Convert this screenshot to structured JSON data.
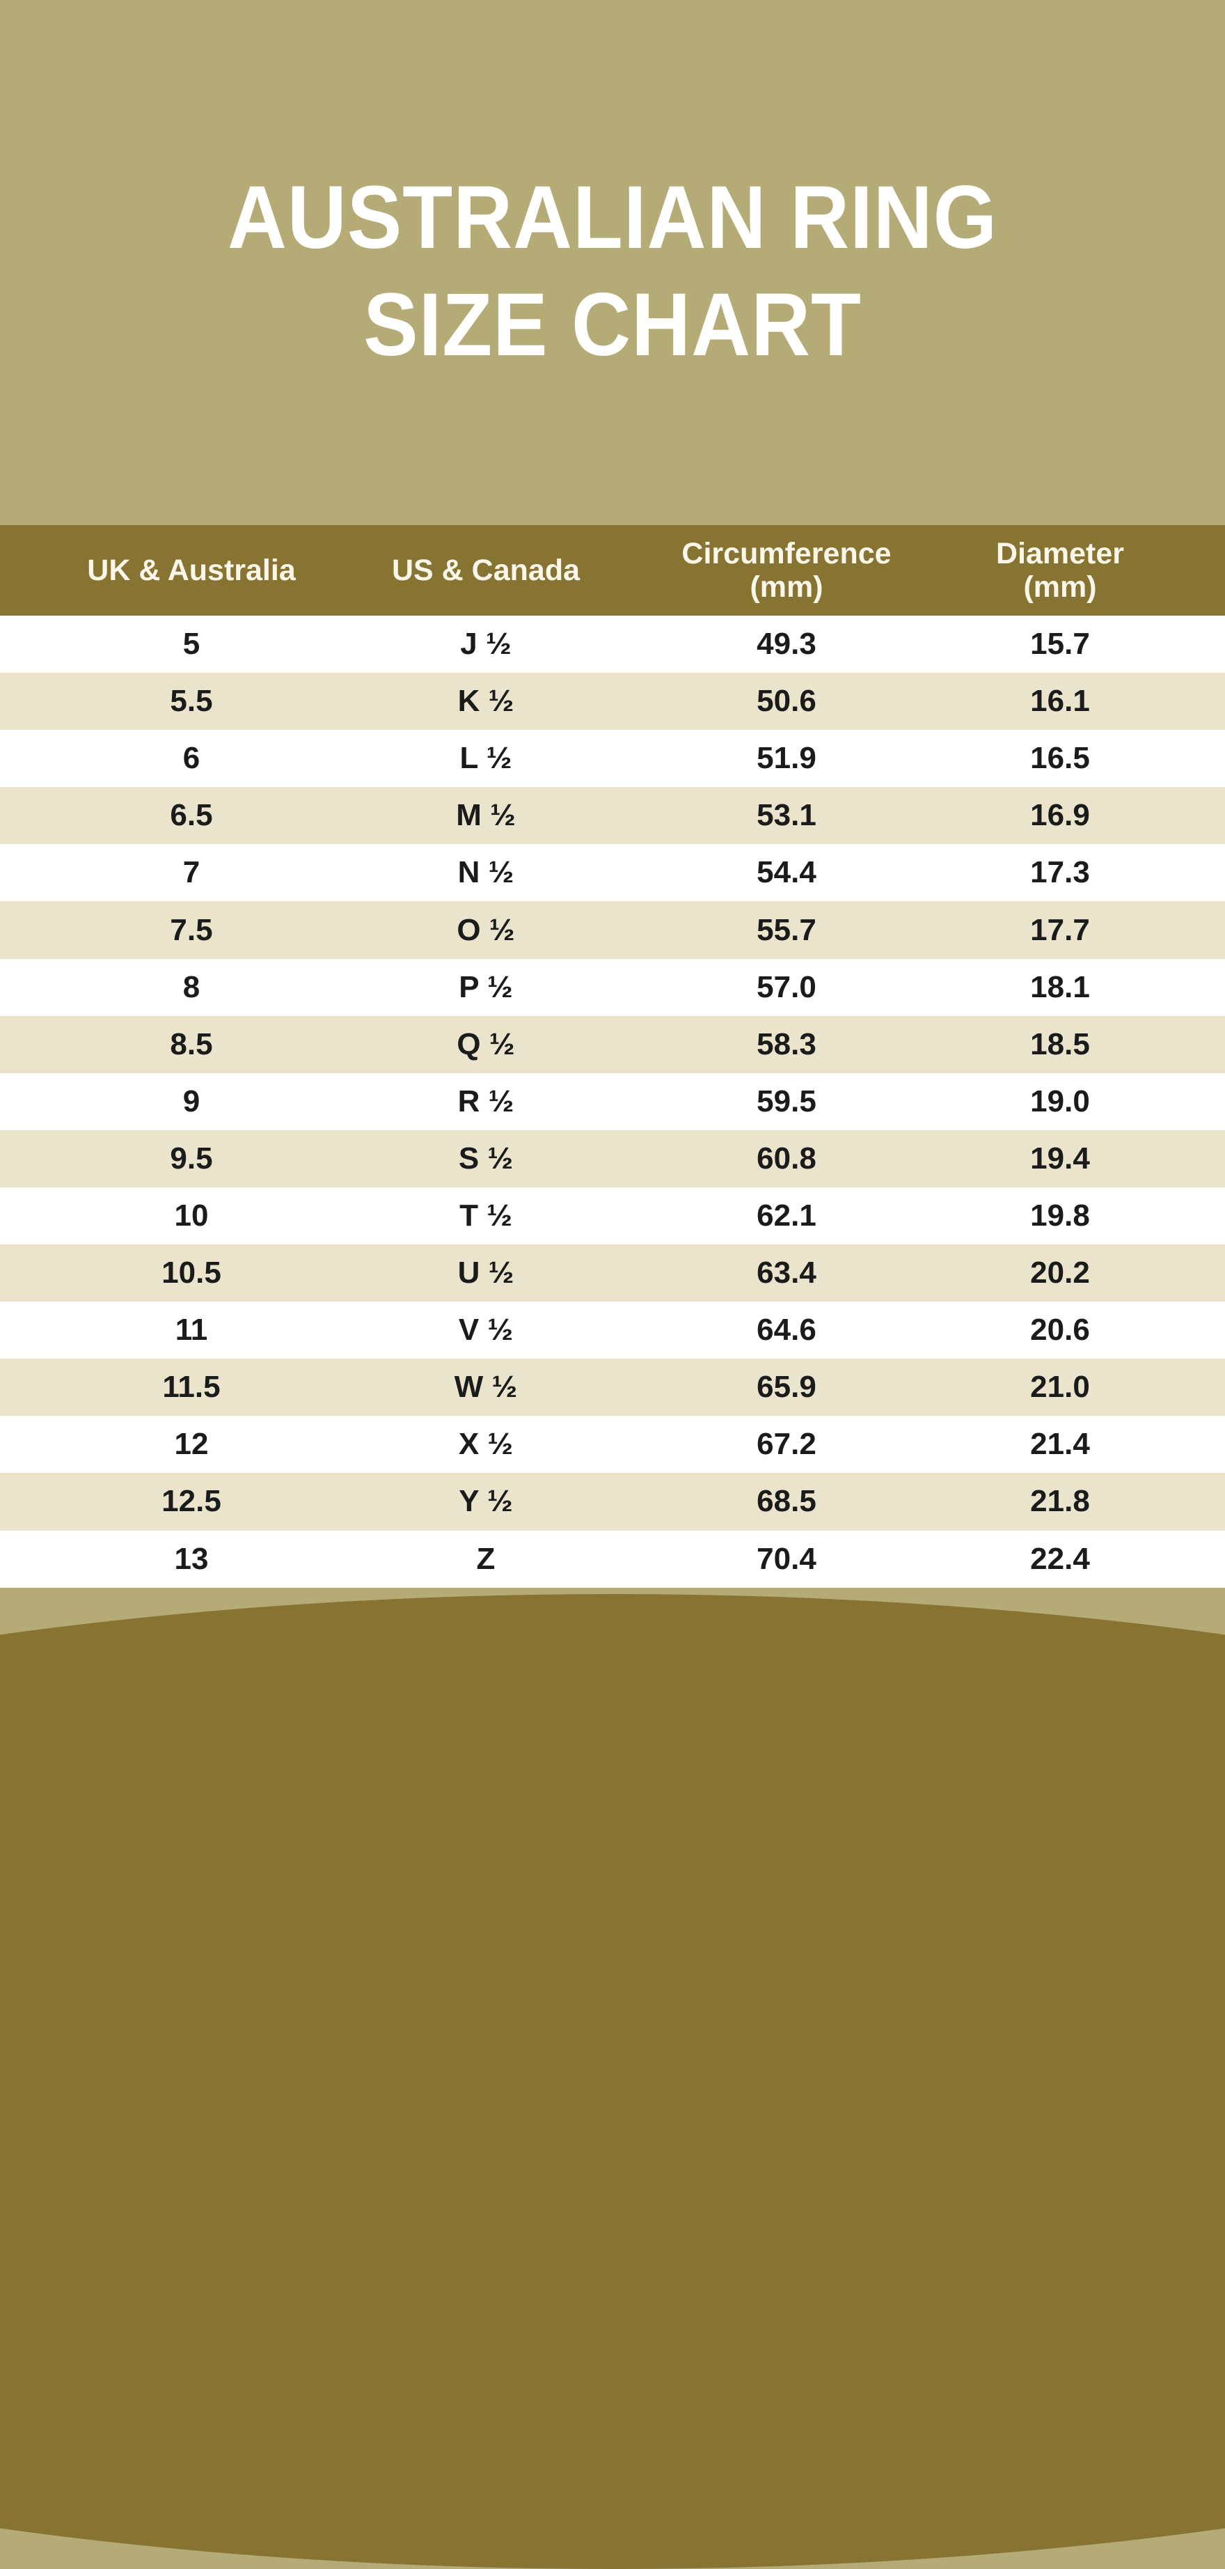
{
  "colors": {
    "background": "#b5ab77",
    "header_bar": "#877433",
    "arc": "#877433",
    "stripe": "#e9e4cb",
    "row_white": "#ffffff",
    "header_text": "#faf6ea",
    "row_text": "#1b1b1b",
    "title_text": "#ffffff"
  },
  "title": {
    "line1": "AUSTRALIAN RING",
    "line2": "SIZE CHART"
  },
  "table": {
    "columns": [
      {
        "label": "UK & Australia",
        "sub": ""
      },
      {
        "label": "US & Canada",
        "sub": ""
      },
      {
        "label": "Circumference",
        "sub": "(mm)"
      },
      {
        "label": "Diameter",
        "sub": "(mm)"
      }
    ],
    "rows": [
      [
        "5",
        "J ½",
        "49.3",
        "15.7"
      ],
      [
        "5.5",
        "K ½",
        "50.6",
        "16.1"
      ],
      [
        "6",
        "L ½",
        "51.9",
        "16.5"
      ],
      [
        "6.5",
        "M ½",
        "53.1",
        "16.9"
      ],
      [
        "7",
        "N ½",
        "54.4",
        "17.3"
      ],
      [
        "7.5",
        "O ½",
        "55.7",
        "17.7"
      ],
      [
        "8",
        "P ½",
        "57.0",
        "18.1"
      ],
      [
        "8.5",
        "Q ½",
        "58.3",
        "18.5"
      ],
      [
        "9",
        "R ½",
        "59.5",
        "19.0"
      ],
      [
        "9.5",
        "S ½",
        "60.8",
        "19.4"
      ],
      [
        "10",
        "T ½",
        "62.1",
        "19.8"
      ],
      [
        "10.5",
        "U ½",
        "63.4",
        "20.2"
      ],
      [
        "11",
        "V ½",
        "64.6",
        "20.6"
      ],
      [
        "11.5",
        "W ½",
        "65.9",
        "21.0"
      ],
      [
        "12",
        "X ½",
        "67.2",
        "21.4"
      ],
      [
        "12.5",
        "Y ½",
        "68.5",
        "21.8"
      ],
      [
        "13",
        "Z",
        "70.4",
        "22.4"
      ]
    ]
  }
}
